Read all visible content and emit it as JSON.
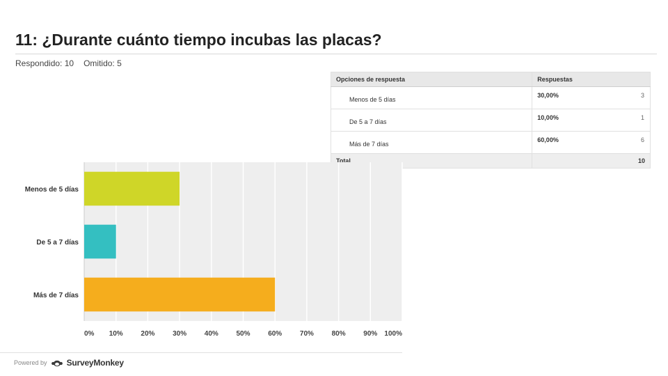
{
  "question": {
    "title": "11: ¿Durante cuánto tiempo incubas las placas?"
  },
  "stats": {
    "answered": "Respondido: 10",
    "skipped": "Omitido: 5"
  },
  "table": {
    "headers": {
      "options": "Opciones de respuesta",
      "responses": "Respuestas"
    },
    "rows": [
      {
        "label": "Menos de 5 días",
        "percent": "30,00%",
        "count": "3"
      },
      {
        "label": "De 5 a 7 días",
        "percent": "10,00%",
        "count": "1"
      },
      {
        "label": "Más de 7 días",
        "percent": "60,00%",
        "count": "6"
      }
    ],
    "total_label": "Total",
    "total_value": "10"
  },
  "chart_data": {
    "type": "bar",
    "orientation": "horizontal",
    "categories": [
      "Menos de 5 días",
      "De 5 a 7 días",
      "Más de 7 días"
    ],
    "values": [
      30,
      10,
      60
    ],
    "colors": [
      "#cfd628",
      "#34bfc1",
      "#f5ad1d"
    ],
    "xlim": [
      0,
      100
    ],
    "xticks": [
      "0%",
      "10%",
      "20%",
      "30%",
      "40%",
      "50%",
      "60%",
      "70%",
      "80%",
      "90%",
      "100%"
    ],
    "grid": true,
    "background": "#eeeeee"
  },
  "footer": {
    "powered_by": "Powered by",
    "brand": "SurveyMonkey"
  }
}
